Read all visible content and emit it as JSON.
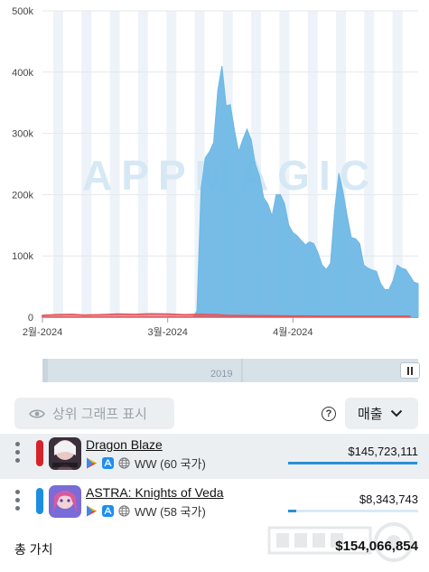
{
  "chart_data": {
    "type": "area",
    "y_ticks": [
      "500k",
      "400k",
      "300k",
      "200k",
      "100k",
      "0"
    ],
    "ylim": [
      0,
      500000
    ],
    "x_ticks": [
      "2월-2024",
      "3월-2024",
      "4월-2024"
    ],
    "watermark": "APPMAGIC",
    "series": [
      {
        "color": "#e0555b",
        "points": [
          [
            0,
            3000
          ],
          [
            3,
            4000
          ],
          [
            7,
            4500
          ],
          [
            10,
            3500
          ],
          [
            14,
            4000
          ],
          [
            18,
            5000
          ],
          [
            22,
            4500
          ],
          [
            26,
            5500
          ],
          [
            30,
            5000
          ],
          [
            34,
            4000
          ],
          [
            38,
            4500
          ],
          [
            42,
            4000
          ],
          [
            44,
            3000
          ],
          [
            50,
            2500
          ],
          [
            60,
            2000
          ],
          [
            70,
            1500
          ],
          [
            80,
            1500
          ],
          [
            88,
            1500
          ]
        ]
      },
      {
        "color": "#6fb8e6",
        "points": [
          [
            0,
            0
          ],
          [
            36,
            0
          ],
          [
            37,
            10000
          ],
          [
            38,
            210000
          ],
          [
            39,
            260000
          ],
          [
            40,
            270000
          ],
          [
            41,
            285000
          ],
          [
            42,
            370000
          ],
          [
            43,
            410000
          ],
          [
            44,
            345000
          ],
          [
            45,
            347000
          ],
          [
            46,
            305000
          ],
          [
            47,
            270000
          ],
          [
            48,
            290000
          ],
          [
            49,
            307000
          ],
          [
            50,
            290000
          ],
          [
            51,
            250000
          ],
          [
            52,
            230000
          ],
          [
            53,
            195000
          ],
          [
            54,
            185000
          ],
          [
            55,
            165000
          ],
          [
            56,
            200000
          ],
          [
            57,
            200000
          ],
          [
            58,
            185000
          ],
          [
            59,
            150000
          ],
          [
            60,
            138000
          ],
          [
            61,
            133000
          ],
          [
            62,
            125000
          ],
          [
            63,
            118000
          ],
          [
            64,
            123000
          ],
          [
            65,
            120000
          ],
          [
            66,
            105000
          ],
          [
            67,
            85000
          ],
          [
            68,
            78000
          ],
          [
            69,
            88000
          ],
          [
            70,
            175000
          ],
          [
            71,
            235000
          ],
          [
            72,
            205000
          ],
          [
            73,
            165000
          ],
          [
            74,
            130000
          ],
          [
            75,
            128000
          ],
          [
            76,
            120000
          ],
          [
            77,
            85000
          ],
          [
            78,
            80000
          ],
          [
            79,
            77000
          ],
          [
            80,
            75000
          ],
          [
            81,
            55000
          ],
          [
            82,
            45000
          ],
          [
            83,
            45000
          ],
          [
            84,
            60000
          ],
          [
            85,
            85000
          ],
          [
            86,
            80000
          ],
          [
            87,
            78000
          ],
          [
            88,
            68000
          ],
          [
            89,
            57000
          ],
          [
            90,
            55000
          ]
        ]
      }
    ]
  },
  "range_selector": {
    "year": "2019"
  },
  "controls": {
    "toggle_top_label": "상위 그래프 표시",
    "help_glyph": "?",
    "metric_label": "매출"
  },
  "apps": [
    {
      "name": "Dragon Blaze",
      "region": "WW (60 국가)",
      "value": "$145,723,111",
      "share": 0.99,
      "color": "#d6232b"
    },
    {
      "name": "ASTRA: Knights of Veda",
      "region": "WW (58 국가)",
      "value": "$8,343,743",
      "share": 0.06,
      "color": "#1b8ee0"
    }
  ],
  "total": {
    "label": "총 가치",
    "amount": "$154,066,854"
  }
}
